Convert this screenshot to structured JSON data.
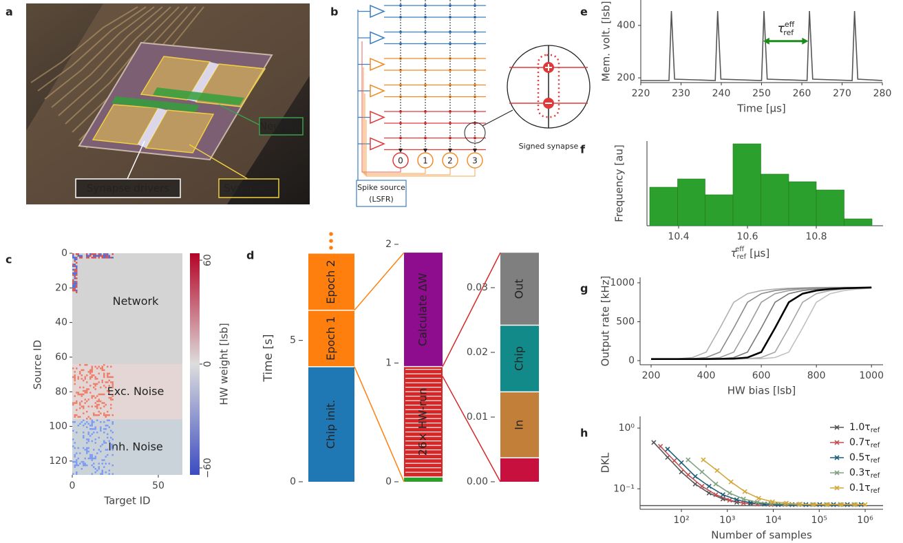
{
  "diagrams": {
    "a": {
      "panel": "a",
      "labels": {
        "neurons": "Neurons",
        "synapse_drivers": "Synapse drivers",
        "synapses": "Synapses"
      }
    },
    "b": {
      "panel": "b",
      "neurons": [
        "0",
        "1",
        "2",
        "3"
      ],
      "spike_source": [
        "Spike source",
        "(LSFR)"
      ],
      "inset": "Signed synapse"
    }
  },
  "chart_data": [
    {
      "panel": "c",
      "type": "heatmap",
      "xlabel": "Target ID",
      "ylabel": "Source ID",
      "xlim": [
        0,
        64
      ],
      "ylim": [
        0,
        128
      ],
      "xticks": [
        0,
        50
      ],
      "yticks": [
        0,
        20,
        40,
        60,
        80,
        100,
        120
      ],
      "y_inverted": true,
      "regions": [
        {
          "label": "Network",
          "from": 0,
          "to": 64,
          "color": "#d4d4d4"
        },
        {
          "label": "Exc. Noise",
          "from": 64,
          "to": 96,
          "color": "#e4d6d4"
        },
        {
          "label": "Inh. Noise",
          "from": 96,
          "to": 128,
          "color": "#c9d3d9"
        }
      ],
      "colorbar": {
        "label": "HW weight [lsb]",
        "lim": [
          -64,
          64
        ],
        "ticks": [
          60,
          0,
          {
            "value": -60,
            "label": "−60"
          }
        ],
        "colors": [
          "#3b4cc0",
          "#dddddd",
          "#b40426"
        ]
      }
    },
    {
      "panel": "d",
      "type": "stacked_columns",
      "ylabel": "Time [s]",
      "columns": [
        {
          "ylim": [
            0,
            8.4
          ],
          "yticks": [
            0,
            5
          ],
          "segments": [
            {
              "label": "Chip init.",
              "value": 4.07,
              "color": "#1f77b4"
            },
            {
              "label": "Epoch 1",
              "value": 2.0,
              "color": "#ff7f0e"
            },
            {
              "label": "Epoch 2",
              "value": 2.0,
              "color": "#ff7f0e"
            }
          ]
        },
        {
          "ylim": [
            0,
            2
          ],
          "yticks": [
            0,
            1,
            2
          ],
          "segments": [
            {
              "label": null,
              "value": 0.04,
              "color": "#2ca02c"
            },
            {
              "label": "26× HW-run",
              "value": 0.93,
              "color": "#d62728"
            },
            {
              "label": "Calculate ΔW",
              "value": 0.96,
              "color": "#8e0c8e"
            }
          ]
        },
        {
          "ylim": [
            0,
            0.0367
          ],
          "yticks": [
            {
              "value": 0,
              "label": "0.00"
            },
            0.01,
            0.02,
            0.03
          ],
          "segments": [
            {
              "label": null,
              "value": 0.0037,
              "color": "#c8103f"
            },
            {
              "label": "In",
              "value": 0.0102,
              "color": "#c17f3a"
            },
            {
              "label": "Chip",
              "value": 0.0103,
              "color": "#138a8a"
            },
            {
              "label": "Out",
              "value": 0.0112,
              "color": "#7f7f7f"
            }
          ]
        }
      ]
    },
    {
      "panel": "e",
      "type": "line",
      "xlabel": "Time [μs]",
      "ylabel": "Mem. volt. [lsb]",
      "xlim": [
        220,
        280
      ],
      "ylim": [
        182,
        497
      ],
      "xticks": [
        220,
        230,
        240,
        250,
        260,
        270,
        280
      ],
      "yticks": [
        200,
        400
      ],
      "x": [
        220,
        227,
        227.6,
        228.4,
        238.5,
        239.1,
        239.9,
        250,
        250.6,
        251.4,
        261.3,
        261.9,
        262.7,
        272.5,
        273.1,
        273.9,
        280
      ],
      "series": [
        {
          "color": "#555555",
          "values": [
            190,
            190,
            455,
            195,
            190,
            455,
            195,
            190,
            455,
            195,
            190,
            455,
            195,
            190,
            455,
            195,
            190
          ]
        }
      ],
      "annotation": {
        "symbol": "τ",
        "sub": "ref",
        "sup": "eff",
        "x": [
          250.4,
          261.6
        ],
        "y": 340,
        "color": "#1a8c1a"
      }
    },
    {
      "panel": "f",
      "type": "histogram",
      "xlabel": {
        "symbol": "τ",
        "sub": "ref",
        "sup": "eff",
        "unit": "[μs]"
      },
      "ylabel": "Frequency [au]",
      "bins": [
        10.316,
        10.397,
        10.477,
        10.558,
        10.639,
        10.72,
        10.8,
        10.881,
        10.962
      ],
      "values": [
        56,
        68,
        45,
        119,
        75,
        64,
        52,
        10
      ],
      "color": "#2ca02c",
      "xlim": [
        10.308,
        10.994
      ],
      "ylim": [
        0,
        123
      ],
      "xticks": [
        10.4,
        10.6,
        10.8
      ]
    },
    {
      "panel": "g",
      "type": "line",
      "xlabel": "HW bias [lsb]",
      "ylabel": "Output rate [kHz]",
      "xlim": [
        160,
        1042
      ],
      "ylim": [
        -53,
        1070
      ],
      "xticks": [
        200,
        400,
        600,
        800,
        1000
      ],
      "yticks": [
        0,
        500,
        1000
      ],
      "x": [
        200,
        250,
        300,
        350,
        400,
        450,
        500,
        550,
        600,
        650,
        700,
        750,
        800,
        850,
        900,
        950,
        1000
      ],
      "series": [
        {
          "color": "#b0b0b0",
          "values": [
            20,
            22,
            25,
            40,
            110,
            420,
            750,
            860,
            900,
            920,
            930,
            935,
            940,
            940,
            940,
            940,
            940
          ]
        },
        {
          "color": "#8a8a8a",
          "values": [
            20,
            20,
            22,
            25,
            40,
            110,
            420,
            750,
            860,
            900,
            920,
            930,
            935,
            940,
            940,
            940,
            940
          ]
        },
        {
          "color": "#9c9c9c",
          "values": [
            20,
            20,
            20,
            22,
            25,
            40,
            110,
            420,
            750,
            860,
            900,
            920,
            930,
            935,
            940,
            940,
            940
          ]
        },
        {
          "color": "#777777",
          "values": [
            20,
            20,
            20,
            20,
            22,
            25,
            40,
            110,
            420,
            750,
            860,
            900,
            920,
            930,
            935,
            940,
            940
          ]
        },
        {
          "color": "#a5a5a5",
          "values": [
            20,
            20,
            20,
            20,
            20,
            20,
            22,
            25,
            40,
            110,
            420,
            750,
            860,
            900,
            920,
            930,
            935
          ]
        },
        {
          "color": "#c0c0c0",
          "values": [
            20,
            20,
            20,
            20,
            20,
            20,
            20,
            22,
            25,
            40,
            110,
            420,
            750,
            860,
            900,
            920,
            930
          ]
        },
        {
          "color": "#000000",
          "values": [
            20,
            20,
            20,
            20,
            20,
            22,
            25,
            40,
            110,
            420,
            750,
            860,
            900,
            920,
            930,
            935,
            940
          ]
        }
      ]
    },
    {
      "panel": "h",
      "type": "line",
      "log_x": true,
      "log_y": true,
      "marker": "x",
      "xlabel": "Number of samples",
      "ylabel": "DKL",
      "xlim": [
        12.6,
        2450000
      ],
      "ylim": [
        0.046,
        1.56
      ],
      "xticks": [
        {
          "value": 100,
          "label": "10²"
        },
        {
          "value": 1000,
          "label": "10³"
        },
        {
          "value": 10000,
          "label": "10⁴"
        },
        {
          "value": 100000,
          "label": "10⁵"
        },
        {
          "value": 1000000,
          "label": "10⁶"
        }
      ],
      "yticks": [
        {
          "value": 1,
          "label": "10⁰"
        },
        {
          "value": 0.1,
          "label": "10⁻¹"
        }
      ],
      "reference": 0.053,
      "series": [
        {
          "name": "1.0τref",
          "color": "#555555",
          "x": [
            25,
            50,
            100,
            200,
            400,
            800,
            1600,
            3200,
            6400,
            12800,
            25600,
            51200,
            102400,
            204800,
            409600,
            819200
          ],
          "values": [
            0.58,
            0.33,
            0.19,
            0.12,
            0.085,
            0.068,
            0.06,
            0.057,
            0.056,
            0.055,
            0.055,
            0.055,
            0.055,
            0.055,
            0.055,
            0.055
          ]
        },
        {
          "name": "0.7τref",
          "color": "#c44e52",
          "x": [
            35,
            70,
            140,
            280,
            560,
            1120,
            2240,
            4480,
            8960,
            17920,
            35840,
            71680,
            143360,
            286720,
            573440
          ],
          "values": [
            0.5,
            0.29,
            0.17,
            0.11,
            0.08,
            0.065,
            0.058,
            0.056,
            0.055,
            0.055,
            0.055,
            0.055,
            0.055,
            0.055,
            0.055
          ]
        },
        {
          "name": "0.5τref",
          "color": "#1f5f7a",
          "x": [
            50,
            100,
            200,
            400,
            800,
            1600,
            3200,
            6400,
            12800,
            25600,
            51200,
            102400,
            204800,
            409600,
            819200
          ],
          "values": [
            0.45,
            0.27,
            0.16,
            0.11,
            0.08,
            0.066,
            0.059,
            0.056,
            0.055,
            0.055,
            0.055,
            0.055,
            0.055,
            0.055,
            0.055
          ]
        },
        {
          "name": "0.3τref",
          "color": "#7fa37f",
          "x": [
            140,
            280,
            560,
            1120,
            2240,
            4480,
            8960,
            17920,
            35840,
            71680,
            143360,
            286720,
            573440
          ],
          "values": [
            0.3,
            0.19,
            0.12,
            0.085,
            0.068,
            0.06,
            0.057,
            0.056,
            0.055,
            0.055,
            0.055,
            0.055,
            0.055
          ]
        },
        {
          "name": "0.1τref",
          "color": "#d4a73c",
          "x": [
            300,
            600,
            1200,
            2400,
            4800,
            9600,
            19200,
            38400,
            76800,
            153600,
            307200,
            614400,
            1000000
          ],
          "values": [
            0.3,
            0.2,
            0.13,
            0.09,
            0.07,
            0.061,
            0.058,
            0.056,
            0.055,
            0.055,
            0.055,
            0.055,
            0.055
          ]
        }
      ]
    }
  ]
}
